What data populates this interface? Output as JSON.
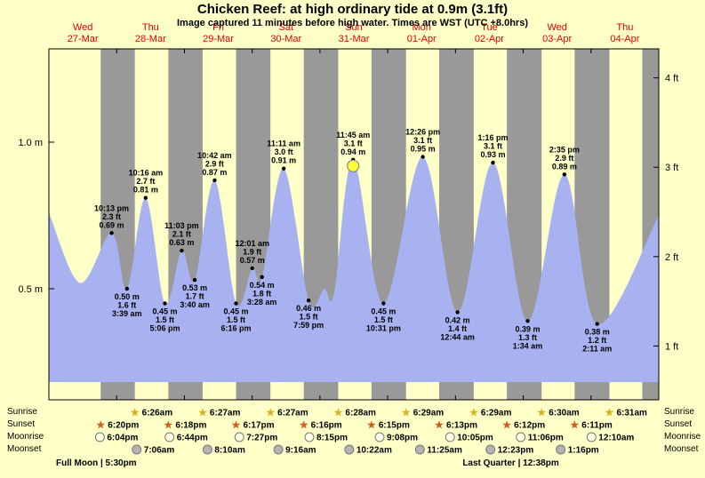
{
  "colors": {
    "background": "#ffffc8",
    "night_band": "#999999",
    "tide_fill": "#a8b2f0",
    "date_label": "#e60000",
    "annotation_text": "#000000",
    "current_marker": "#ffff33",
    "sunrise_star": "#d9b214",
    "sunset_star": "#cf5f1c",
    "moonrise_circle": "#ffffe6",
    "moonset_circle": "#b3b3b3"
  },
  "chart_data": {
    "type": "area",
    "title": "Chicken Reef: at high  ordinary tide at 0.9m (3.1ft)",
    "subtitle": "Image captured 11 minutes before high water. Times are WST (UTC +8.0hrs)",
    "x_days": [
      {
        "weekday": "Wed",
        "date": "27-Mar"
      },
      {
        "weekday": "Thu",
        "date": "28-Mar"
      },
      {
        "weekday": "Fri",
        "date": "29-Mar"
      },
      {
        "weekday": "Sat",
        "date": "30-Mar"
      },
      {
        "weekday": "Sun",
        "date": "31-Mar"
      },
      {
        "weekday": "Mon",
        "date": "01-Apr"
      },
      {
        "weekday": "Tue",
        "date": "02-Apr"
      },
      {
        "weekday": "Wed",
        "date": "03-Apr"
      },
      {
        "weekday": "Thu",
        "date": "04-Apr"
      }
    ],
    "y_left_ticks": [
      {
        "label": "1.0 m",
        "height_m": 1.0
      },
      {
        "label": "0.5 m",
        "height_m": 0.5
      }
    ],
    "y_right_ticks": [
      {
        "label": "4 ft",
        "height_m": 1.2192
      },
      {
        "label": "3 ft",
        "height_m": 0.9144
      },
      {
        "label": "2 ft",
        "height_m": 0.6096
      },
      {
        "label": "1 ft",
        "height_m": 0.3048
      }
    ],
    "y_range_m": [
      0,
      1.35
    ],
    "tide_events": [
      {
        "kind": "high",
        "day": 0,
        "time": "10:13 pm",
        "ft": "2.3 ft",
        "m": "0.69 m",
        "height_m": 0.69
      },
      {
        "kind": "low",
        "day": 1,
        "time": "3:39 am",
        "ft": "1.6 ft",
        "m": "0.50 m",
        "height_m": 0.5
      },
      {
        "kind": "high",
        "day": 1,
        "time": "10:16 am",
        "ft": "2.7 ft",
        "m": "0.81 m",
        "height_m": 0.81
      },
      {
        "kind": "low",
        "day": 1,
        "time": "5:06 pm",
        "ft": "1.5 ft",
        "m": "0.45 m",
        "height_m": 0.45
      },
      {
        "kind": "high",
        "day": 1,
        "time": "11:03 pm",
        "ft": "2.1 ft",
        "m": "0.63 m",
        "height_m": 0.63
      },
      {
        "kind": "low",
        "day": 2,
        "time": "3:40 am",
        "ft": "1.7 ft",
        "m": "0.53 m",
        "height_m": 0.53
      },
      {
        "kind": "high",
        "day": 2,
        "time": "10:42 am",
        "ft": "2.9 ft",
        "m": "0.87 m",
        "height_m": 0.87
      },
      {
        "kind": "low",
        "day": 2,
        "time": "6:16 pm",
        "ft": "1.5 ft",
        "m": "0.45 m",
        "height_m": 0.45
      },
      {
        "kind": "high",
        "day": 3,
        "time": "12:01 am",
        "ft": "1.9 ft",
        "m": "0.57 m",
        "height_m": 0.57
      },
      {
        "kind": "low",
        "day": 3,
        "time": "3:28 am",
        "ft": "1.8 ft",
        "m": "0.54 m",
        "height_m": 0.54
      },
      {
        "kind": "high",
        "day": 3,
        "time": "11:11 am",
        "ft": "3.0 ft",
        "m": "0.91 m",
        "height_m": 0.91
      },
      {
        "kind": "low",
        "day": 3,
        "time": "7:59 pm",
        "ft": "1.5 ft",
        "m": "0.46 m",
        "height_m": 0.46
      },
      {
        "kind": "high",
        "day": 4,
        "time": "11:45 am",
        "ft": "3.1 ft",
        "m": "0.94 m",
        "height_m": 0.94,
        "current": true
      },
      {
        "kind": "low",
        "day": 4,
        "time": "10:31 pm",
        "ft": "1.5 ft",
        "m": "0.45 m",
        "height_m": 0.45
      },
      {
        "kind": "high",
        "day": 5,
        "time": "12:26 pm",
        "ft": "3.1 ft",
        "m": "0.95 m",
        "height_m": 0.95
      },
      {
        "kind": "low",
        "day": 6,
        "time": "12:44 am",
        "ft": "1.4 ft",
        "m": "0.42 m",
        "height_m": 0.42
      },
      {
        "kind": "high",
        "day": 6,
        "time": "1:16 pm",
        "ft": "3.1 ft",
        "m": "0.93 m",
        "height_m": 0.93
      },
      {
        "kind": "low",
        "day": 7,
        "time": "1:34 am",
        "ft": "1.3 ft",
        "m": "0.39 m",
        "height_m": 0.39
      },
      {
        "kind": "high",
        "day": 7,
        "time": "2:35 pm",
        "ft": "2.9 ft",
        "m": "0.89 m",
        "height_m": 0.89
      },
      {
        "kind": "low",
        "day": 8,
        "time": "2:11 am",
        "ft": "1.2 ft",
        "m": "0.38 m",
        "height_m": 0.38
      }
    ],
    "curve_anchors": [
      {
        "day": 0,
        "time": "12:00 am",
        "height_m": 0.76
      },
      {
        "day": 0,
        "time": "11:00 am",
        "height_m": 0.52
      },
      {
        "day": 4,
        "time": "1:30 am",
        "height_m": 0.5
      },
      {
        "day": 4,
        "time": "5:00 am",
        "height_m": 0.485
      },
      {
        "day": 8,
        "time": "11:59 pm",
        "height_m": 0.75
      }
    ]
  },
  "astronomy": {
    "rows": [
      {
        "label": "Sunrise",
        "icon": "star",
        "events": [
          {
            "day": 1,
            "time": "6:26am"
          },
          {
            "day": 2,
            "time": "6:27am"
          },
          {
            "day": 3,
            "time": "6:27am"
          },
          {
            "day": 4,
            "time": "6:28am"
          },
          {
            "day": 5,
            "time": "6:29am"
          },
          {
            "day": 6,
            "time": "6:29am"
          },
          {
            "day": 7,
            "time": "6:30am"
          },
          {
            "day": 8,
            "time": "6:31am"
          }
        ]
      },
      {
        "label": "Sunset",
        "icon": "star",
        "events": [
          {
            "day": 0,
            "time": "6:20pm"
          },
          {
            "day": 1,
            "time": "6:18pm"
          },
          {
            "day": 2,
            "time": "6:17pm"
          },
          {
            "day": 3,
            "time": "6:16pm"
          },
          {
            "day": 4,
            "time": "6:15pm"
          },
          {
            "day": 5,
            "time": "6:13pm"
          },
          {
            "day": 6,
            "time": "6:12pm"
          },
          {
            "day": 7,
            "time": "6:11pm"
          }
        ]
      },
      {
        "label": "Moonrise",
        "icon": "circle",
        "events": [
          {
            "day": 0,
            "time": "6:04pm"
          },
          {
            "day": 1,
            "time": "6:44pm"
          },
          {
            "day": 2,
            "time": "7:27pm"
          },
          {
            "day": 3,
            "time": "8:15pm"
          },
          {
            "day": 4,
            "time": "9:08pm"
          },
          {
            "day": 5,
            "time": "10:05pm"
          },
          {
            "day": 6,
            "time": "11:06pm"
          },
          {
            "day": 8,
            "time": "12:10am"
          }
        ]
      },
      {
        "label": "Moonset",
        "icon": "circle",
        "events": [
          {
            "day": 1,
            "time": "7:06am"
          },
          {
            "day": 2,
            "time": "8:10am"
          },
          {
            "day": 3,
            "time": "9:16am"
          },
          {
            "day": 4,
            "time": "10:22am"
          },
          {
            "day": 5,
            "time": "11:25am"
          },
          {
            "day": 6,
            "time": "12:23pm"
          },
          {
            "day": 7,
            "time": "1:16pm"
          }
        ]
      }
    ],
    "phases": [
      {
        "label": "Full Moon | 5:30pm",
        "day": 0
      },
      {
        "label": "Last Quarter | 12:38pm",
        "day": 6
      }
    ]
  }
}
